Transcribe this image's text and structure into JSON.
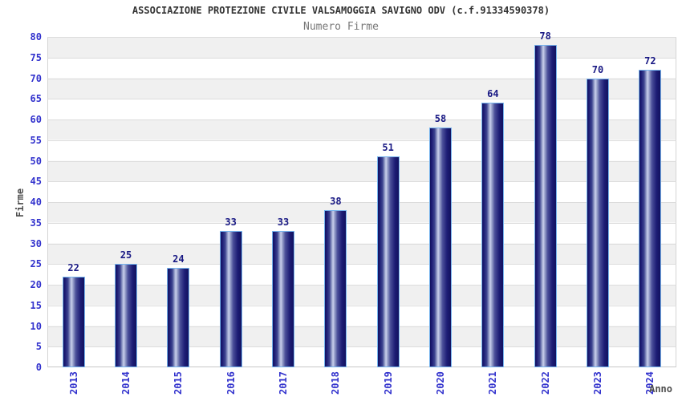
{
  "chart_data": {
    "type": "bar",
    "title": "ASSOCIAZIONE PROTEZIONE CIVILE VALSAMOGGIA SAVIGNO ODV (c.f.91334590378)",
    "subtitle": "Numero Firme",
    "xlabel": "Anno",
    "ylabel": "Firme",
    "categories": [
      "2013",
      "2014",
      "2015",
      "2016",
      "2017",
      "2018",
      "2019",
      "2020",
      "2021",
      "2022",
      "2023",
      "2024"
    ],
    "values": [
      22,
      25,
      24,
      33,
      33,
      38,
      51,
      58,
      64,
      78,
      70,
      72
    ],
    "ylim": [
      0,
      80
    ],
    "ytick_step": 5,
    "grid": true,
    "legend_position": "none",
    "colors": {
      "axis_tick_label": "#3232cd",
      "value_label": "#191984",
      "bar_dark": "#12125f",
      "bar_highlight": "#c9d0ec",
      "bar_border": "#76b4ee",
      "band_gray": "#f0f0f0",
      "band_white": "#ffffff",
      "gridline": "#dcdcdc",
      "title": "#333333",
      "subtitle": "#787878",
      "axis_title": "#4d4d4d"
    }
  }
}
